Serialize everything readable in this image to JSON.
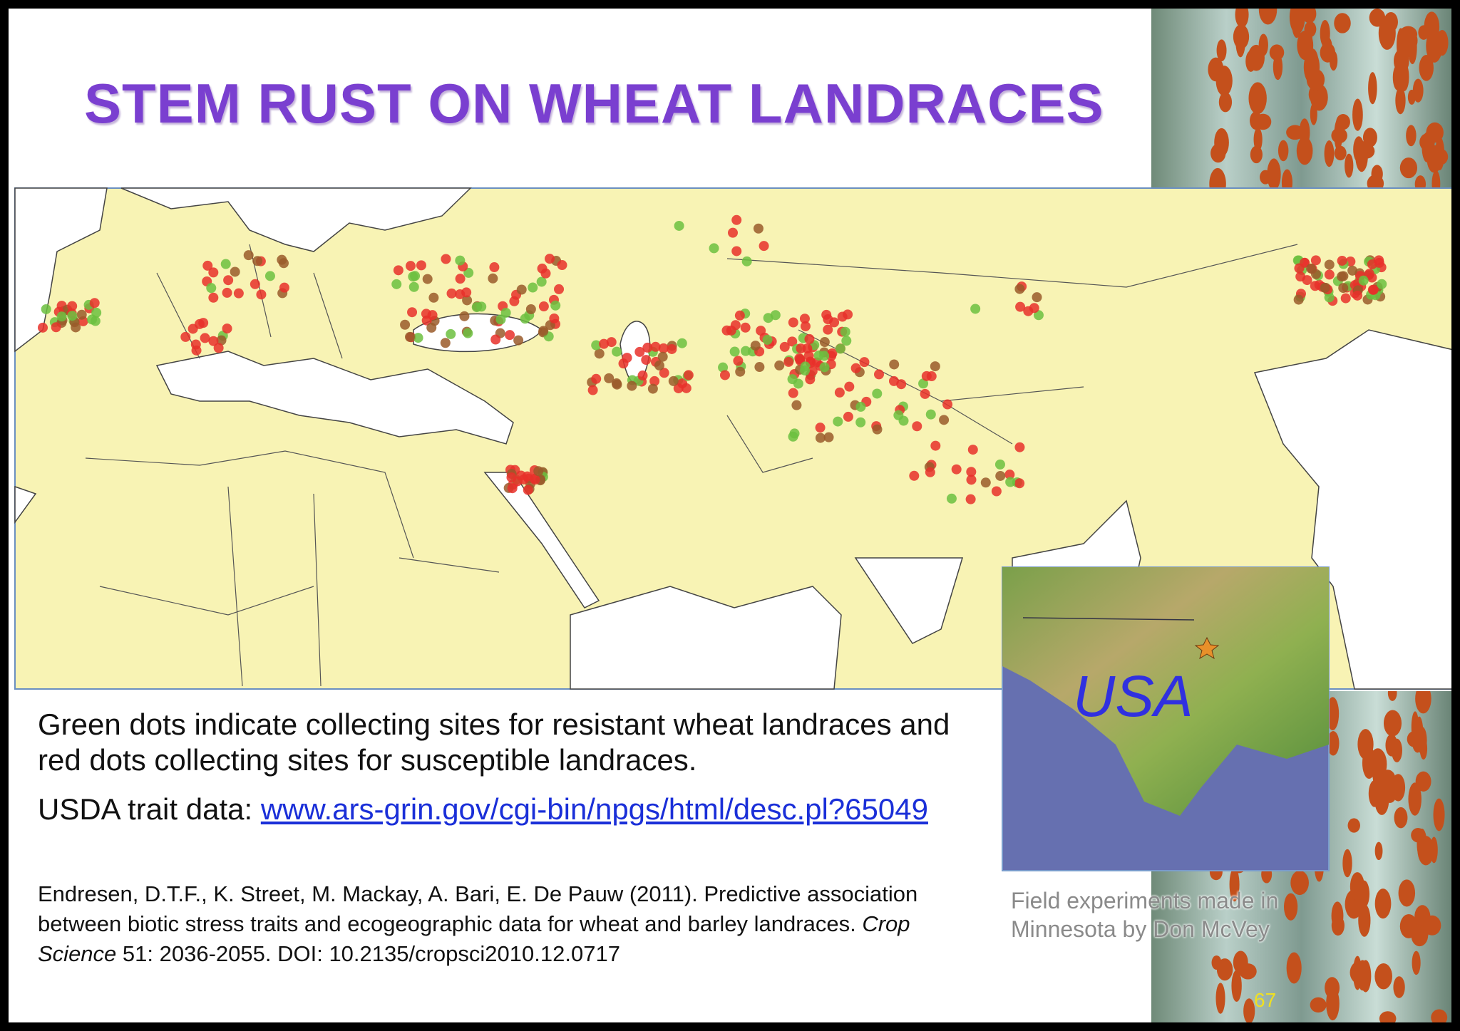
{
  "title": "STEM RUST ON WHEAT LANDRACES",
  "description": "Green dots indicate collecting sites for resistant wheat landraces and red dots collecting sites for susceptible landraces.",
  "usda": {
    "label": "USDA trait data:",
    "link": "www.ars-grin.gov/cgi-bin/npgs/html/desc.pl?65049"
  },
  "citation": {
    "before": "Endresen, D.T.F., K. Street, M. Mackay, A. Bari, E. De Pauw (2011). Predictive association between biotic stress traits and ecogeographic data for wheat and barley landraces.",
    "journal": "Crop Science",
    "after": "51: 2036-2055. DOI: 10.2135/cropsci2010.12.0717"
  },
  "inset": {
    "label": "USA",
    "caption": "Field experiments made in Minnesota by Don McVey"
  },
  "page_number": "67"
}
